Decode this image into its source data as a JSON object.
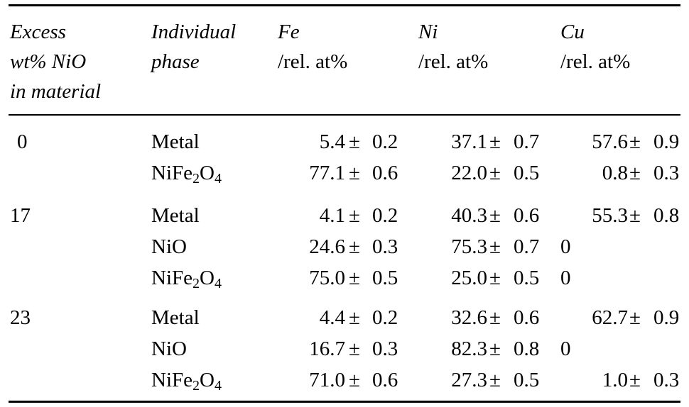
{
  "table": {
    "headers": {
      "excess": [
        "Excess",
        "wt% NiO",
        "in material"
      ],
      "phase": [
        "Individual",
        "phase"
      ],
      "fe": {
        "element": "Fe",
        "unit": "/rel. at%"
      },
      "ni": {
        "element": "Ni",
        "unit": "/rel. at%"
      },
      "cu": {
        "element": "Cu",
        "unit": "/rel. at%"
      }
    },
    "pm_symbol": "±",
    "groups": [
      {
        "excess": "0",
        "rows": [
          {
            "phase": "Metal",
            "fe": [
              "5.4",
              "0.2"
            ],
            "ni": [
              "37.1",
              "0.7"
            ],
            "cu": [
              "57.6",
              "0.9"
            ]
          },
          {
            "phase_base": "NiFe",
            "phase_sub1": "2",
            "phase_mid": "O",
            "phase_sub2": "4",
            "fe": [
              "77.1",
              "0.6"
            ],
            "ni": [
              "22.0",
              "0.5"
            ],
            "cu": [
              "0.8",
              "0.3"
            ]
          }
        ]
      },
      {
        "excess": "17",
        "rows": [
          {
            "phase": "Metal",
            "fe": [
              "4.1",
              "0.2"
            ],
            "ni": [
              "40.3",
              "0.6"
            ],
            "cu": [
              "55.3",
              "0.8"
            ]
          },
          {
            "phase": "NiO",
            "fe": [
              "24.6",
              "0.3"
            ],
            "ni": [
              "75.3",
              "0.7"
            ],
            "cu": "0"
          },
          {
            "phase_base": "NiFe",
            "phase_sub1": "2",
            "phase_mid": "O",
            "phase_sub2": "4",
            "fe": [
              "75.0",
              "0.5"
            ],
            "ni": [
              "25.0",
              "0.5"
            ],
            "cu": "0"
          }
        ]
      },
      {
        "excess": "23",
        "rows": [
          {
            "phase": "Metal",
            "fe": [
              "4.4",
              "0.2"
            ],
            "ni": [
              "32.6",
              "0.6"
            ],
            "cu": [
              "62.7",
              "0.9"
            ]
          },
          {
            "phase": "NiO",
            "fe": [
              "16.7",
              "0.3"
            ],
            "ni": [
              "82.3",
              "0.8"
            ],
            "cu": "0"
          },
          {
            "phase_base": "NiFe",
            "phase_sub1": "2",
            "phase_mid": "O",
            "phase_sub2": "4",
            "fe": [
              "71.0",
              "0.6"
            ],
            "ni": [
              "27.3",
              "0.5"
            ],
            "cu": [
              "1.0",
              "0.3"
            ]
          }
        ]
      }
    ]
  }
}
